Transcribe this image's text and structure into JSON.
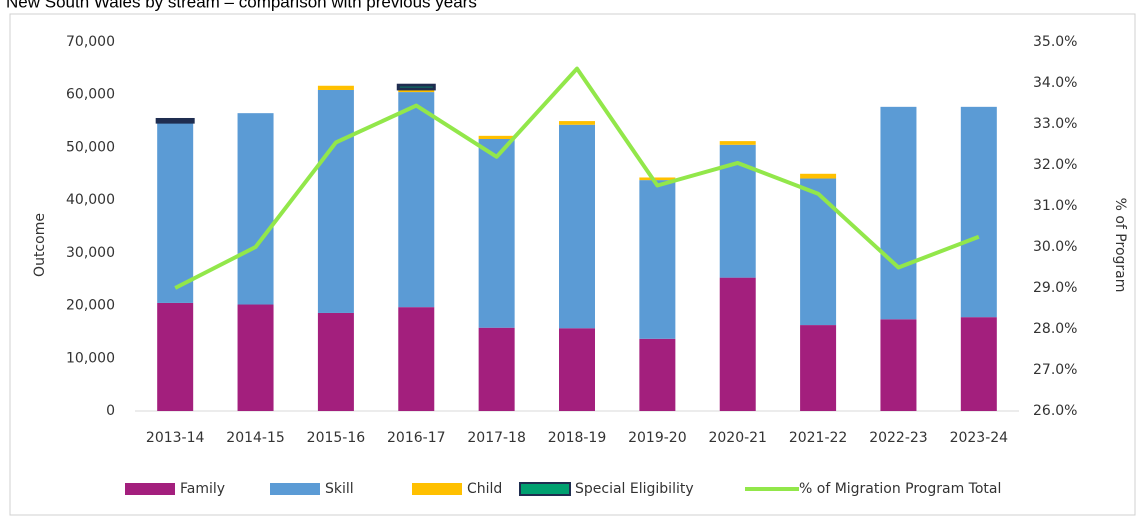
{
  "chart_data": {
    "type": "bar",
    "stacked": true,
    "title": "New South Wales by stream – comparison with previous years",
    "y_label": "Outcome",
    "y2_label": "% of Program",
    "categories": [
      "2013-14",
      "2014-15",
      "2015-16",
      "2016-17",
      "2017-18",
      "2018-19",
      "2019-20",
      "2020-21",
      "2021-22",
      "2022-23",
      "2023-24"
    ],
    "series": [
      {
        "name": "Family",
        "color": "#a31f7d",
        "values": [
          20500,
          20200,
          18600,
          19700,
          15800,
          15700,
          13700,
          25300,
          16300,
          17400,
          17800
        ]
      },
      {
        "name": "Skill",
        "color": "#5b9bd5",
        "values": [
          34300,
          36300,
          42300,
          40800,
          35800,
          38600,
          30100,
          25200,
          27800,
          40300,
          39900
        ]
      },
      {
        "name": "Child",
        "color": "#ffc000",
        "values": [
          0,
          0,
          800,
          600,
          600,
          700,
          500,
          700,
          900,
          0,
          0
        ]
      },
      {
        "name": "Special Eligibility",
        "color": "#00a070",
        "edge": "#1f2d50",
        "values": [
          500,
          0,
          0,
          700,
          0,
          0,
          0,
          0,
          0,
          0,
          0
        ]
      },
      {
        "name": "% of Migration Program Total",
        "color": "#92e74a",
        "axis": "y2",
        "type": "line",
        "values": [
          29.0,
          30.0,
          32.55,
          33.45,
          32.2,
          34.35,
          31.5,
          32.05,
          31.3,
          29.5,
          30.25
        ]
      }
    ],
    "ylim": [
      0,
      70000
    ],
    "yticks": [
      0,
      {
        "value": 10000,
        "label": "10,000"
      },
      {
        "value": 20000,
        "label": "20,000"
      },
      {
        "value": 30000,
        "label": "30,000"
      },
      {
        "value": 40000,
        "label": "40,000"
      },
      {
        "value": 50000,
        "label": "50,000"
      },
      {
        "value": 60000,
        "label": "60,000"
      },
      {
        "value": 70000,
        "label": "70,000"
      }
    ],
    "y2lim": [
      26,
      35
    ],
    "y2ticks": [
      {
        "value": 26,
        "label": "26.0%"
      },
      {
        "value": 27,
        "label": "27.0%"
      },
      {
        "value": 28,
        "label": "28.0%"
      },
      {
        "value": 29,
        "label": "29.0%"
      },
      {
        "value": 30,
        "label": "30.0%"
      },
      {
        "value": 31,
        "label": "31.0%"
      },
      {
        "value": 32,
        "label": "32.0%"
      },
      {
        "value": 33,
        "label": "33.0%"
      },
      {
        "value": 34,
        "label": "34.0%"
      },
      {
        "value": 35,
        "label": "35.0%"
      }
    ],
    "grid": false,
    "legend": "bottom"
  }
}
